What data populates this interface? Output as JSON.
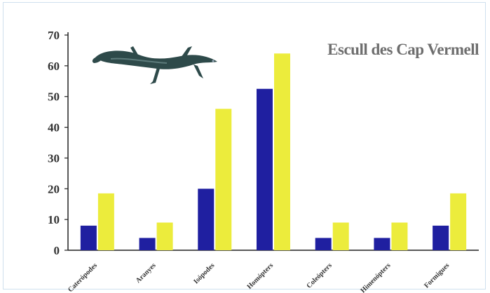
{
  "colors": {
    "series_a": "#1f1fa0",
    "series_b": "#ecec3c",
    "axis": "#222222",
    "text": "#333333"
  },
  "icons": {
    "lizard": "lizard-illustration"
  },
  "chart_data": {
    "type": "bar",
    "title": "Escull des Cap Vermell",
    "xlabel": "",
    "ylabel": "",
    "categories": [
      "Caterópodes",
      "Aranyes",
      "Isópodes",
      "Homópters",
      "Coleópters",
      "Himenópters",
      "Formigues"
    ],
    "series": [
      {
        "values": [
          8,
          4,
          20,
          52.5,
          4,
          4,
          8
        ]
      },
      {
        "values": [
          18.5,
          9,
          46,
          64,
          9,
          9,
          18.5
        ]
      }
    ],
    "ylim": [
      0,
      70
    ],
    "yticks": [
      0,
      10,
      20,
      30,
      40,
      50,
      60,
      70
    ],
    "grid": false,
    "legend": "none"
  }
}
